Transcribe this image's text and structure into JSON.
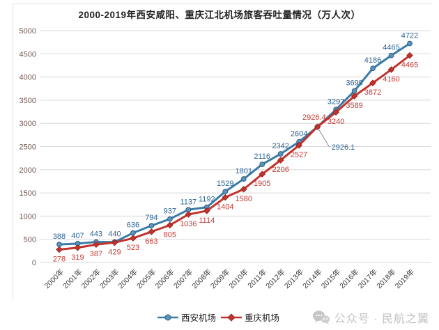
{
  "title": "2000-2019年西安咸阳、重庆江北机场旅客吞吐量情况（万人次）",
  "watermark": {
    "icon": "wechat-icon",
    "text": "公众号 · 民航之翼"
  },
  "chart_data": {
    "type": "line",
    "title": "2000-2019年西安咸阳、重庆江北机场旅客吞吐量情况（万人次）",
    "categories": [
      "2000年",
      "2001年",
      "2002年",
      "2003年",
      "2004年",
      "2005年",
      "2006年",
      "2007年",
      "2008年",
      "2009年",
      "2010年",
      "2011年",
      "2012年",
      "2013年",
      "2014年",
      "2015年",
      "2016年",
      "2017年",
      "2018年",
      "2019年"
    ],
    "series": [
      {
        "name": "西安机场",
        "color": "#3a7ca8",
        "marker": "circle",
        "marker_fill": "#5b93bb",
        "label_color": "#2e6496",
        "label_position": "above",
        "values": [
          388,
          407,
          443,
          440,
          636,
          794,
          937,
          1137,
          1192,
          1529,
          1801,
          2116,
          2342,
          2604,
          2926.1,
          3297,
          3699,
          4186,
          4465,
          4722
        ],
        "label_overrides": {
          "14": "callout"
        }
      },
      {
        "name": "重庆机场",
        "color": "#c3332d",
        "marker": "diamond",
        "marker_fill": "#c3332d",
        "label_color": "#c43b35",
        "label_position": "below",
        "values": [
          278,
          319,
          387,
          429,
          523,
          663,
          805,
          1036,
          1114,
          1404,
          1580,
          1905,
          2206,
          2527,
          2926.4,
          3240,
          3589,
          3872,
          4160,
          4465
        ],
        "label_overrides": {
          "14": "above"
        }
      }
    ],
    "ylim": [
      0,
      5000
    ],
    "ytick_step": 500,
    "grid": true,
    "legend_position": "bottom",
    "axis_colors": {
      "y_labels": "#6d554e",
      "x_labels": "#3a3a3a",
      "grid": "#d8d8d8",
      "leader": "#8a8a8a"
    }
  }
}
